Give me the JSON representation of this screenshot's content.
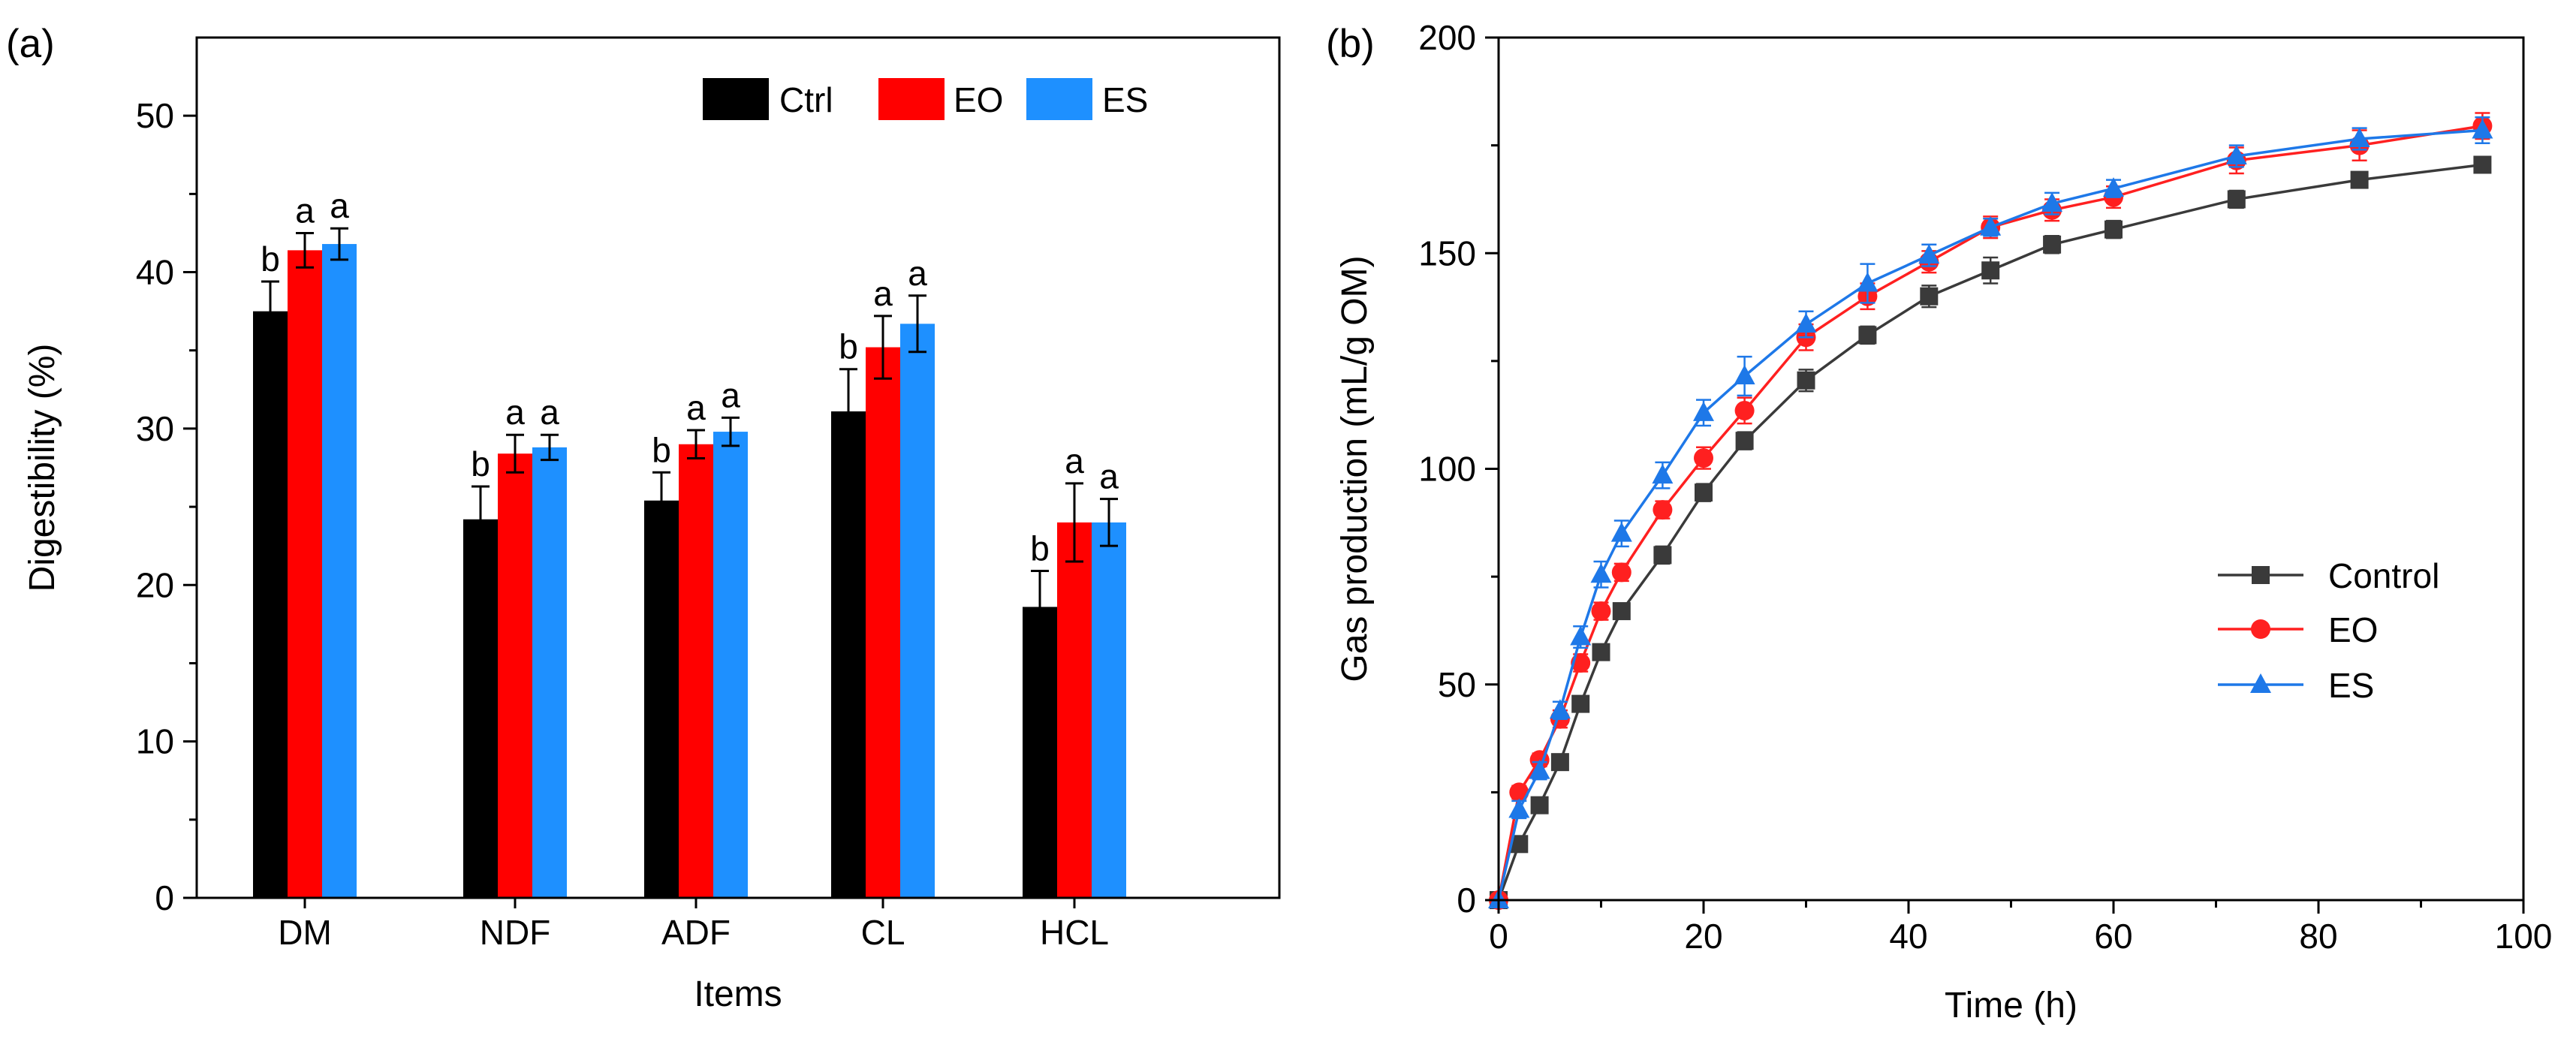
{
  "chart_data": [
    {
      "type": "bar",
      "panel_label": "(a)",
      "title": "",
      "xlabel": "Items",
      "ylabel": "Digestibility (%)",
      "ylim": [
        0,
        55
      ],
      "yticks": [
        0,
        10,
        20,
        30,
        40,
        50
      ],
      "ytick_labels": [
        "0",
        "10",
        "20",
        "30",
        "40",
        "50"
      ],
      "categories": [
        "DM",
        "NDF",
        "ADF",
        "CL",
        "HCL"
      ],
      "series": [
        {
          "name": "Ctrl",
          "color": "#000000",
          "values": [
            37.5,
            24.2,
            25.4,
            31.1,
            18.6
          ],
          "errors": [
            1.9,
            2.1,
            1.8,
            2.7,
            2.3
          ],
          "letters": [
            "b",
            "b",
            "b",
            "b",
            "b"
          ]
        },
        {
          "name": "EO",
          "color": "#ff0000",
          "values": [
            41.4,
            28.4,
            29.0,
            35.2,
            24.0
          ],
          "errors": [
            1.1,
            1.2,
            0.9,
            2.0,
            2.5
          ],
          "letters": [
            "a",
            "a",
            "a",
            "a",
            "a"
          ]
        },
        {
          "name": "ES",
          "color": "#1e90ff",
          "values": [
            41.8,
            28.8,
            29.8,
            36.7,
            24.0
          ],
          "errors": [
            1.0,
            0.8,
            0.9,
            1.8,
            1.5
          ],
          "letters": [
            "a",
            "a",
            "a",
            "a",
            "a"
          ]
        }
      ],
      "legend_position": "top-right",
      "grid": false
    },
    {
      "type": "line",
      "panel_label": "(b)",
      "title": "",
      "xlabel": "Time (h)",
      "ylabel": "Gas production (mL/g OM)",
      "xlim": [
        0,
        100
      ],
      "ylim": [
        0,
        200
      ],
      "xticks": [
        0,
        20,
        40,
        60,
        80,
        100
      ],
      "xtick_labels": [
        "0",
        "20",
        "40",
        "60",
        "80",
        "100"
      ],
      "yticks": [
        0,
        50,
        100,
        150,
        200
      ],
      "ytick_labels": [
        "0",
        "50",
        "100",
        "150",
        "200"
      ],
      "x": [
        0,
        2,
        4,
        6,
        8,
        10,
        12,
        16,
        20,
        24,
        30,
        36,
        42,
        48,
        54,
        60,
        72,
        84,
        96
      ],
      "series": [
        {
          "name": "Control",
          "color": "#3a3a3a",
          "marker": "square",
          "values": [
            0,
            13,
            22,
            32,
            45.5,
            57.5,
            67,
            80,
            94.5,
            106.5,
            120.5,
            131,
            140,
            146,
            152,
            155.5,
            162.5,
            167,
            170.5
          ],
          "errors": [
            0,
            1.2,
            1.2,
            1.5,
            1.5,
            1.5,
            1.8,
            2,
            2,
            2,
            2.5,
            2,
            2.5,
            3,
            2,
            2,
            2,
            1.5,
            1.5
          ]
        },
        {
          "name": "EO",
          "color": "#ff2020",
          "marker": "circle",
          "values": [
            0,
            25,
            32.5,
            42,
            55,
            67,
            76,
            90.5,
            102.5,
            113.5,
            130.5,
            140,
            148,
            156,
            160,
            163,
            171.5,
            175,
            179.5
          ],
          "errors": [
            0,
            1.5,
            1.5,
            2,
            2,
            2,
            2,
            2,
            2.5,
            3,
            3,
            3,
            2.5,
            2.5,
            2.5,
            2.5,
            3,
            3.5,
            3
          ]
        },
        {
          "name": "ES",
          "color": "#1e78e8",
          "marker": "triangle",
          "values": [
            0,
            21,
            30,
            44,
            61,
            75.5,
            85,
            98.5,
            113,
            121.5,
            133.5,
            143,
            149.5,
            156,
            161.5,
            165,
            172.5,
            176.5,
            178.5
          ],
          "errors": [
            0,
            2,
            2,
            2,
            2.5,
            3,
            3,
            3,
            3,
            4.5,
            3,
            4.5,
            2.5,
            2,
            2.5,
            2,
            2.5,
            2.5,
            3
          ]
        }
      ],
      "legend_position": "center-right",
      "grid": false
    }
  ]
}
